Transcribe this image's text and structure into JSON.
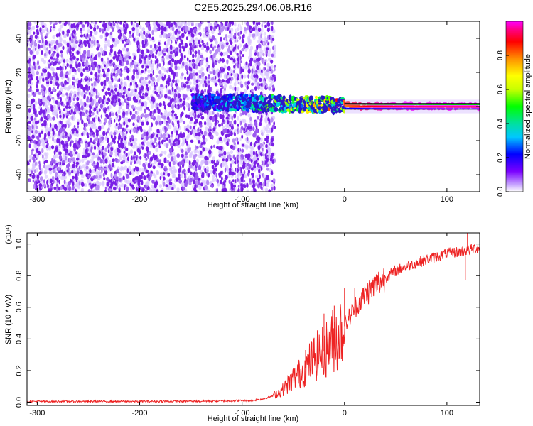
{
  "title": "C2E5.2025.294.06.08.R16",
  "colors": {
    "snr_line": "#ee2222",
    "scatter_purple": "#7a1fe6",
    "ridge_dark": "#2a19c8",
    "colorbar_stops": [
      "#ffffff",
      "#c9a8ff",
      "#7a00ff",
      "#0000ff",
      "#00c8ff",
      "#00e0a0",
      "#00ff00",
      "#c8ff00",
      "#ffff00",
      "#ff9000",
      "#ff0000",
      "#ff0080",
      "#ff00ff"
    ]
  },
  "chart_data": [
    {
      "type": "heatmap",
      "name": "spectrogram",
      "xlabel": "Height of straight line (km)",
      "ylabel": "Frequency (Hz)",
      "xlim": [
        -310,
        132
      ],
      "ylim": [
        -50,
        50
      ],
      "xticks": [
        -300,
        -200,
        -100,
        0,
        100
      ],
      "xticklabels": [
        "-300",
        "-200",
        "-100",
        "0",
        "100"
      ],
      "yticks": [
        -40,
        -20,
        0,
        20,
        40
      ],
      "yticklabels": [
        "-40",
        "-20",
        "0",
        "20",
        "40"
      ],
      "colorbar": {
        "label": "Normalized spectral amplitude",
        "range": [
          0,
          1
        ],
        "ticks": [
          0.0,
          0.2,
          0.4,
          0.6,
          0.8
        ],
        "ticklabels": [
          "0.0",
          "0.2",
          "0.4",
          "0.6",
          "0.8"
        ]
      },
      "noise_region": {
        "x": [
          -310,
          -68
        ],
        "y": [
          -50,
          50
        ]
      },
      "ridge": {
        "x": [
          -145,
          -120,
          -100,
          -80,
          -60,
          -40,
          -20,
          0,
          20,
          60,
          100,
          132
        ],
        "freq": [
          2.5,
          2.5,
          2.2,
          1.8,
          1.5,
          1.3,
          1.0,
          0.5,
          0.3,
          0.2,
          0.1,
          0.1
        ],
        "amplitude": [
          0.25,
          0.3,
          0.35,
          0.45,
          0.55,
          0.6,
          0.65,
          0.85,
          0.95,
          1.0,
          1.0,
          1.0
        ]
      }
    },
    {
      "type": "line",
      "name": "snr",
      "xlabel": "Height of straight line (km)",
      "ylabel": "SNR (10 * v/v)",
      "scale_note": "(x10⁴)",
      "xlim": [
        -310,
        132
      ],
      "ylim": [
        -0.02,
        1.07
      ],
      "xticks": [
        -300,
        -200,
        -100,
        0,
        100
      ],
      "xticklabels": [
        "-300",
        "-200",
        "-100",
        "0",
        "100"
      ],
      "yticks": [
        0.0,
        0.2,
        0.4,
        0.6,
        0.8,
        1.0
      ],
      "yticklabels": [
        "0.0",
        "0.2",
        "0.4",
        "0.6",
        "0.8",
        "1.0"
      ],
      "series": [
        {
          "x": [
            -310,
            -250,
            -200,
            -150,
            -120,
            -100,
            -90,
            -80,
            -70,
            -60,
            -50,
            -40,
            -30,
            -20,
            -10,
            0,
            10,
            20,
            30,
            40,
            50,
            60,
            70,
            80,
            90,
            100,
            110,
            120,
            132
          ],
          "values": [
            0.005,
            0.005,
            0.005,
            0.006,
            0.008,
            0.01,
            0.012,
            0.02,
            0.04,
            0.08,
            0.15,
            0.2,
            0.28,
            0.32,
            0.4,
            0.48,
            0.6,
            0.68,
            0.74,
            0.79,
            0.83,
            0.86,
            0.88,
            0.9,
            0.92,
            0.94,
            0.95,
            0.96,
            0.98
          ],
          "spikes": [
            [
              -38,
              0.33
            ],
            [
              -30,
              0.4
            ],
            [
              -20,
              0.56
            ],
            [
              -10,
              0.61
            ],
            [
              0,
              0.72
            ],
            [
              10,
              0.72
            ],
            [
              120,
              1.07
            ],
            [
              118,
              0.77
            ]
          ]
        }
      ]
    }
  ]
}
